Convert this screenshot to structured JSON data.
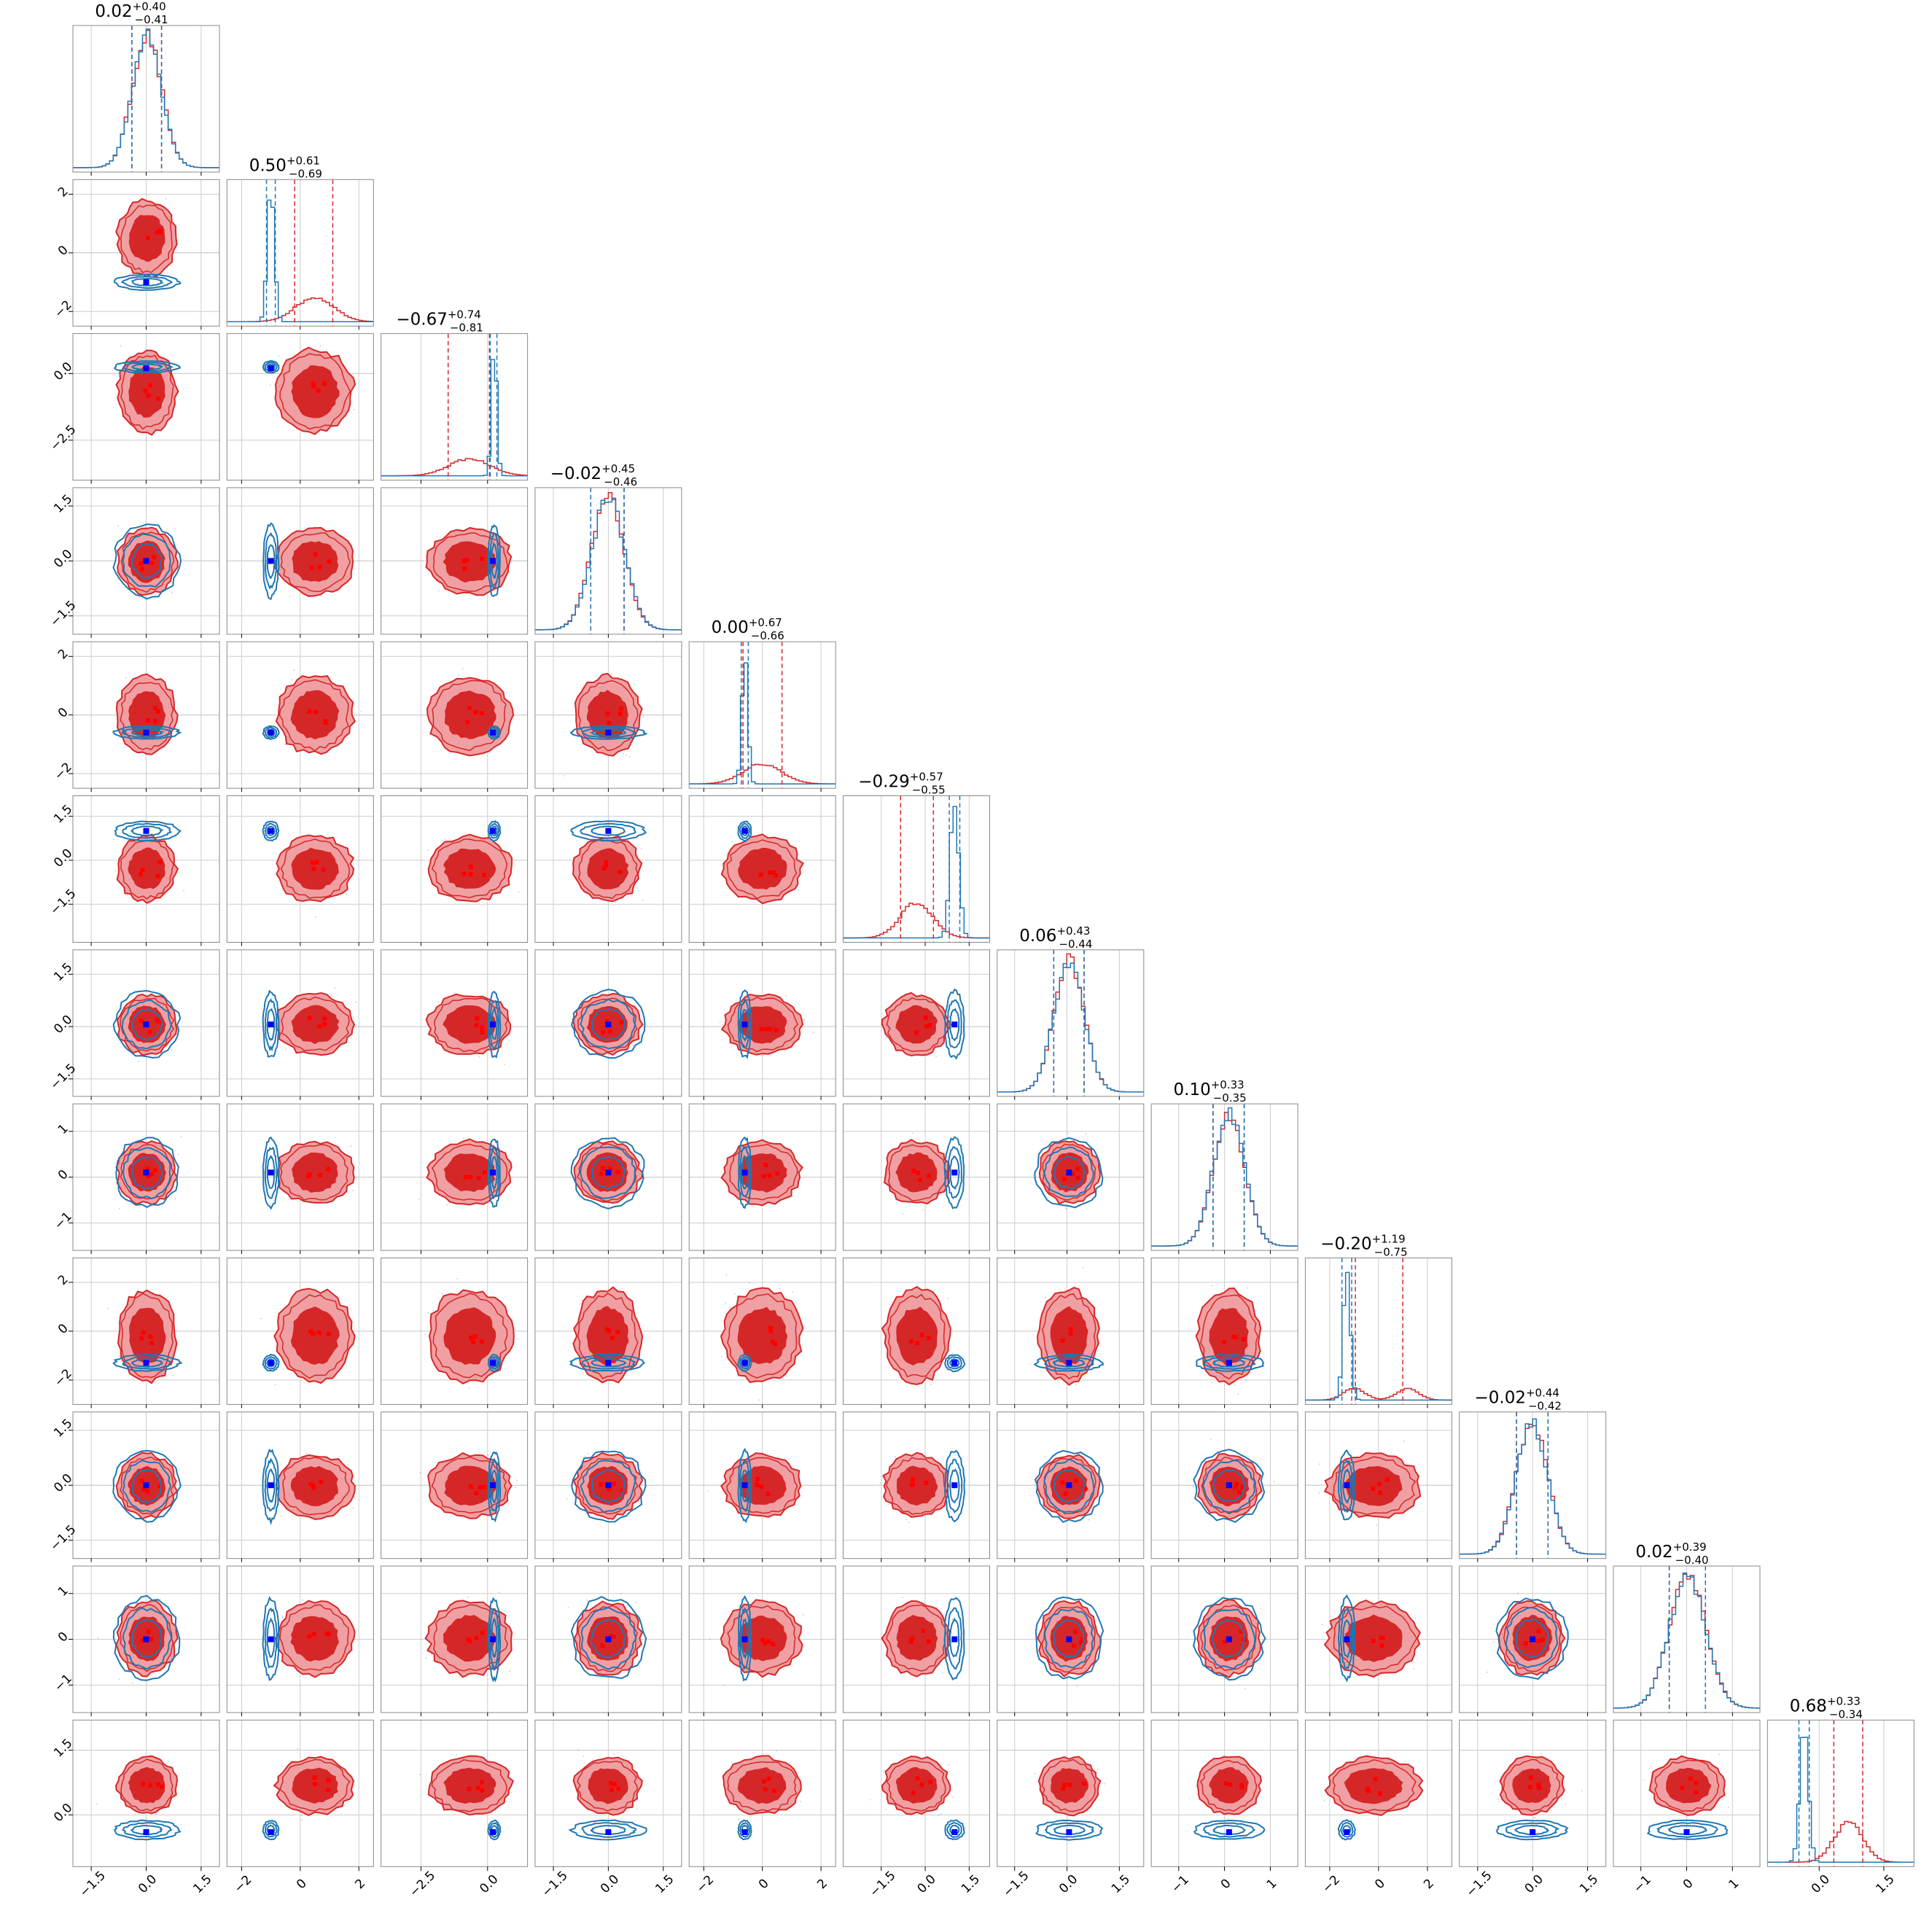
{
  "chart_data": {
    "type": "corner",
    "n_params": 12,
    "grid": true,
    "legend": "none",
    "colors": {
      "red_line": "#d62728",
      "red_fill_outer": "#f0a0a2",
      "red_fill_inner": "#d62728",
      "blue_line": "#1f77b4",
      "truth_marker": "#0000ff",
      "red_marker": "#ff0000",
      "grid": "#cccccc"
    },
    "titles": [
      {
        "median": "0.02",
        "plus": "+0.40",
        "minus": "−0.41"
      },
      {
        "median": "0.50",
        "plus": "+0.61",
        "minus": "−0.69"
      },
      {
        "median": "−0.67",
        "plus": "+0.74",
        "minus": "−0.81"
      },
      {
        "median": "−0.02",
        "plus": "+0.45",
        "minus": "−0.46"
      },
      {
        "median": "0.00",
        "plus": "+0.67",
        "minus": "−0.66"
      },
      {
        "median": "−0.29",
        "plus": "+0.57",
        "minus": "−0.55"
      },
      {
        "median": "0.06",
        "plus": "+0.43",
        "minus": "−0.44"
      },
      {
        "median": "0.10",
        "plus": "+0.33",
        "minus": "−0.35"
      },
      {
        "median": "−0.20",
        "plus": "+1.19",
        "minus": "−0.75"
      },
      {
        "median": "−0.02",
        "plus": "+0.44",
        "minus": "−0.42"
      },
      {
        "median": "0.02",
        "plus": "+0.39",
        "minus": "−0.40"
      },
      {
        "median": "0.68",
        "plus": "+0.33",
        "minus": "−0.34"
      }
    ],
    "params": [
      {
        "range": [
          -2.0,
          2.0
        ],
        "ticks": [
          -1.5,
          0.0,
          1.5
        ],
        "tick_labels": [
          "−1.5",
          "0.0",
          "1.5"
        ],
        "red": {
          "mean": 0.02,
          "sd": 0.4
        },
        "blue": {
          "mean": 0.02,
          "sd": 0.4
        },
        "truth": 0.0,
        "red_q": [
          -0.39,
          0.42
        ],
        "blue_q": [
          -0.39,
          0.42
        ]
      },
      {
        "range": [
          -2.5,
          2.5
        ],
        "ticks": [
          -2,
          0,
          2
        ],
        "tick_labels": [
          "−2",
          "0",
          "2"
        ],
        "red": {
          "mean": 0.5,
          "sd": 0.65
        },
        "blue": {
          "mean": -1.0,
          "sd": 0.12
        },
        "truth": -1.0,
        "red_q": [
          -0.19,
          1.11
        ],
        "blue_q": [
          -1.15,
          -0.85
        ]
      },
      {
        "range": [
          -4.0,
          1.5
        ],
        "ticks": [
          -2.5,
          0.0
        ],
        "tick_labels": [
          "−2.5",
          "0.0"
        ],
        "red": {
          "mean": -0.67,
          "sd": 0.78
        },
        "blue": {
          "mean": 0.25,
          "sd": 0.1
        },
        "truth": 0.2,
        "red_q": [
          -1.48,
          0.07
        ],
        "blue_q": [
          0.1,
          0.35
        ]
      },
      {
        "range": [
          -2.0,
          2.0
        ],
        "ticks": [
          -1.5,
          0.0,
          1.5
        ],
        "tick_labels": [
          "−1.5",
          "0.0",
          "1.5"
        ],
        "red": {
          "mean": -0.02,
          "sd": 0.45
        },
        "blue": {
          "mean": 0.0,
          "sd": 0.45
        },
        "truth": 0.0,
        "red_q": [
          -0.48,
          0.43
        ],
        "blue_q": [
          -0.48,
          0.43
        ]
      },
      {
        "range": [
          -2.5,
          2.5
        ],
        "ticks": [
          -2,
          0,
          2
        ],
        "tick_labels": [
          "−2",
          "0",
          "2"
        ],
        "red": {
          "mean": 0.0,
          "sd": 0.66
        },
        "blue": {
          "mean": -0.6,
          "sd": 0.1
        },
        "truth": -0.6,
        "red_q": [
          -0.66,
          0.67
        ],
        "blue_q": [
          -0.72,
          -0.48
        ]
      },
      {
        "range": [
          -2.8,
          2.2
        ],
        "ticks": [
          -1.5,
          0.0,
          1.5
        ],
        "tick_labels": [
          "−1.5",
          "0.0",
          "1.5"
        ],
        "red": {
          "mean": -0.29,
          "sd": 0.56
        },
        "blue": {
          "mean": 1.0,
          "sd": 0.15
        },
        "truth": 1.0,
        "red_q": [
          -0.84,
          0.28
        ],
        "blue_q": [
          0.82,
          1.18
        ]
      },
      {
        "range": [
          -2.0,
          2.2
        ],
        "ticks": [
          -1.5,
          0.0,
          1.5
        ],
        "tick_labels": [
          "−1.5",
          "0.0",
          "1.5"
        ],
        "red": {
          "mean": 0.06,
          "sd": 0.43
        },
        "blue": {
          "mean": 0.06,
          "sd": 0.43
        },
        "truth": 0.06,
        "red_q": [
          -0.38,
          0.49
        ],
        "blue_q": [
          -0.38,
          0.49
        ]
      },
      {
        "range": [
          -1.6,
          1.6
        ],
        "ticks": [
          -1,
          0,
          1
        ],
        "tick_labels": [
          "−1",
          "0",
          "1"
        ],
        "red": {
          "mean": 0.1,
          "sd": 0.34
        },
        "blue": {
          "mean": 0.1,
          "sd": 0.34
        },
        "truth": 0.1,
        "red_q": [
          -0.25,
          0.43
        ],
        "blue_q": [
          -0.25,
          0.43
        ]
      },
      {
        "range": [
          -3.0,
          3.0
        ],
        "ticks": [
          -2,
          0,
          2
        ],
        "tick_labels": [
          "−2",
          "0",
          "2"
        ],
        "red": {
          "mean": -0.2,
          "sd": 0.95
        },
        "blue": {
          "mean": -1.3,
          "sd": 0.15
        },
        "truth": -1.3,
        "red_q": [
          -0.95,
          0.99
        ],
        "blue_q": [
          -1.5,
          -1.1
        ]
      },
      {
        "range": [
          -2.0,
          2.0
        ],
        "ticks": [
          -1.5,
          0.0,
          1.5
        ],
        "tick_labels": [
          "−1.5",
          "0.0",
          "1.5"
        ],
        "red": {
          "mean": -0.02,
          "sd": 0.43
        },
        "blue": {
          "mean": -0.02,
          "sd": 0.43
        },
        "truth": 0.0,
        "red_q": [
          -0.44,
          0.42
        ],
        "blue_q": [
          -0.44,
          0.42
        ]
      },
      {
        "range": [
          -1.6,
          1.6
        ],
        "ticks": [
          -1,
          0,
          1
        ],
        "tick_labels": [
          "−1",
          "0",
          "1"
        ],
        "red": {
          "mean": 0.02,
          "sd": 0.4
        },
        "blue": {
          "mean": 0.02,
          "sd": 0.4
        },
        "truth": 0.0,
        "red_q": [
          -0.38,
          0.41
        ],
        "blue_q": [
          -0.38,
          0.41
        ]
      },
      {
        "range": [
          -1.2,
          2.2
        ],
        "ticks": [
          0.0,
          1.5
        ],
        "tick_labels": [
          "0.0",
          "1.5"
        ],
        "red": {
          "mean": 0.68,
          "sd": 0.33
        },
        "blue": {
          "mean": -0.35,
          "sd": 0.1
        },
        "truth": -0.4,
        "red_q": [
          0.34,
          1.01
        ],
        "blue_q": [
          -0.47,
          -0.23
        ]
      }
    ]
  }
}
